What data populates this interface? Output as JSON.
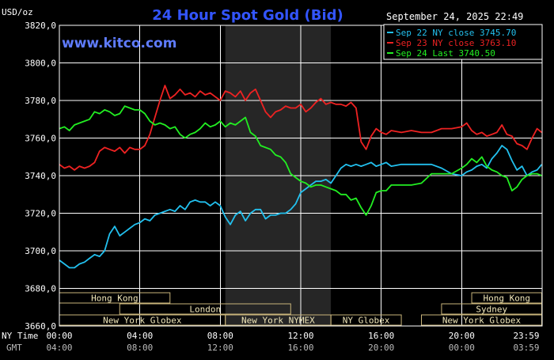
{
  "header": {
    "unit_label": "USD/oz",
    "title": "24 Hour Spot Gold (Bid)",
    "datetime": "September 24, 2025 22:49",
    "watermark": "www.kitco.com"
  },
  "colors": {
    "background": "#000000",
    "grid": "#ffffff",
    "title": "#3355ff",
    "watermark": "#5f7cff",
    "shaded_region": "#262626",
    "session_box_fill": "#fff8d8",
    "session_box_stroke": "#c8b47a",
    "session_text": "#000000"
  },
  "legend": {
    "position": "top-right",
    "items": [
      {
        "label": "Sep 22 NY close 3745.70",
        "color": "#22c0ee"
      },
      {
        "label": "Sep 23 NY close 3763.10",
        "color": "#ee2222"
      },
      {
        "label": "Sep 24 Last 3740.50",
        "color": "#22ee22"
      }
    ]
  },
  "time_axis": {
    "ny_label": "NY Time",
    "gmt_label": "GMT",
    "ny_ticks": [
      "00:00",
      "04:00",
      "08:00",
      "12:00",
      "16:00",
      "20:00",
      "23:59"
    ],
    "gmt_ticks": [
      "04:00",
      "08:00",
      "12:00",
      "16:00",
      "20:00",
      "00:00",
      "03:59"
    ]
  },
  "sessions": [
    {
      "label": "Hong Kong",
      "start": 0.0,
      "end": 5.5,
      "row": 0
    },
    {
      "label": "Hong Kong",
      "start": 20.5,
      "end": 23.98,
      "row": 0
    },
    {
      "label": "London",
      "start": 3.0,
      "end": 11.5,
      "row": 1
    },
    {
      "label": "Sydney",
      "start": 19.0,
      "end": 23.98,
      "row": 1
    },
    {
      "label": "New York Globex",
      "start": 0.0,
      "end": 8.25,
      "row": 2
    },
    {
      "label": "New York NYMEX",
      "start": 8.25,
      "end": 13.5,
      "row": 2
    },
    {
      "label": "NY Globex",
      "start": 13.5,
      "end": 17.0,
      "row": 2
    },
    {
      "label": "New York Globex",
      "start": 18.0,
      "end": 23.98,
      "row": 2
    }
  ],
  "chart_data": {
    "type": "line",
    "title": "24 Hour Spot Gold (Bid)",
    "ylabel": "USD/oz",
    "xlabel": "NY Time",
    "x_unit": "hours (NY time)",
    "xlim": [
      0,
      24
    ],
    "ylim": [
      3660,
      3820
    ],
    "yticks": [
      3660,
      3680,
      3700,
      3720,
      3740,
      3760,
      3780,
      3800,
      3820
    ],
    "grid": true,
    "shaded_x_range": [
      8.25,
      13.5
    ],
    "series": [
      {
        "name": "Sep 22 NY close 3745.70",
        "color": "#22c0ee",
        "points": [
          [
            0.0,
            3695
          ],
          [
            0.25,
            3693
          ],
          [
            0.5,
            3691
          ],
          [
            0.75,
            3691
          ],
          [
            1.0,
            3693
          ],
          [
            1.25,
            3694
          ],
          [
            1.5,
            3696
          ],
          [
            1.75,
            3698
          ],
          [
            2.0,
            3697
          ],
          [
            2.25,
            3700
          ],
          [
            2.5,
            3709
          ],
          [
            2.75,
            3713
          ],
          [
            3.0,
            3708
          ],
          [
            3.25,
            3710
          ],
          [
            3.5,
            3712
          ],
          [
            3.75,
            3714
          ],
          [
            4.0,
            3715
          ],
          [
            4.25,
            3717
          ],
          [
            4.5,
            3716
          ],
          [
            4.75,
            3719
          ],
          [
            5.0,
            3720
          ],
          [
            5.25,
            3721
          ],
          [
            5.5,
            3722
          ],
          [
            5.75,
            3721
          ],
          [
            6.0,
            3724
          ],
          [
            6.25,
            3722
          ],
          [
            6.5,
            3726
          ],
          [
            6.75,
            3727
          ],
          [
            7.0,
            3726
          ],
          [
            7.25,
            3726
          ],
          [
            7.5,
            3724
          ],
          [
            7.75,
            3726
          ],
          [
            8.0,
            3724
          ],
          [
            8.25,
            3718
          ],
          [
            8.5,
            3714
          ],
          [
            8.75,
            3719
          ],
          [
            9.0,
            3721
          ],
          [
            9.25,
            3716
          ],
          [
            9.5,
            3720
          ],
          [
            9.75,
            3722
          ],
          [
            10.0,
            3722
          ],
          [
            10.25,
            3717
          ],
          [
            10.5,
            3719
          ],
          [
            10.75,
            3719
          ],
          [
            11.0,
            3720
          ],
          [
            11.25,
            3720
          ],
          [
            11.5,
            3722
          ],
          [
            11.75,
            3725
          ],
          [
            12.0,
            3731
          ],
          [
            12.25,
            3733
          ],
          [
            12.5,
            3735
          ],
          [
            12.75,
            3737
          ],
          [
            13.0,
            3737
          ],
          [
            13.25,
            3738
          ],
          [
            13.5,
            3736
          ],
          [
            13.75,
            3740
          ],
          [
            14.0,
            3744
          ],
          [
            14.25,
            3746
          ],
          [
            14.5,
            3745
          ],
          [
            14.75,
            3746
          ],
          [
            15.0,
            3745
          ],
          [
            15.25,
            3746
          ],
          [
            15.5,
            3747
          ],
          [
            15.75,
            3745
          ],
          [
            16.0,
            3746
          ],
          [
            16.25,
            3747
          ],
          [
            16.5,
            3745
          ],
          [
            17.0,
            3746
          ],
          [
            17.5,
            3746
          ],
          [
            18.0,
            3746
          ],
          [
            18.5,
            3746
          ],
          [
            19.0,
            3744
          ],
          [
            19.5,
            3741
          ],
          [
            20.0,
            3740
          ],
          [
            20.25,
            3742
          ],
          [
            20.5,
            3743
          ],
          [
            20.75,
            3745
          ],
          [
            21.0,
            3746
          ],
          [
            21.25,
            3744
          ],
          [
            21.5,
            3749
          ],
          [
            21.75,
            3752
          ],
          [
            22.0,
            3756
          ],
          [
            22.25,
            3754
          ],
          [
            22.5,
            3748
          ],
          [
            22.75,
            3743
          ],
          [
            23.0,
            3745
          ],
          [
            23.25,
            3740
          ],
          [
            23.5,
            3742
          ],
          [
            23.75,
            3743
          ],
          [
            23.98,
            3746
          ]
        ]
      },
      {
        "name": "Sep 23 NY close 3763.10",
        "color": "#ee2222",
        "points": [
          [
            0.0,
            3746
          ],
          [
            0.25,
            3744
          ],
          [
            0.5,
            3745
          ],
          [
            0.75,
            3743
          ],
          [
            1.0,
            3745
          ],
          [
            1.25,
            3744
          ],
          [
            1.5,
            3745
          ],
          [
            1.75,
            3747
          ],
          [
            2.0,
            3753
          ],
          [
            2.25,
            3755
          ],
          [
            2.5,
            3754
          ],
          [
            2.75,
            3753
          ],
          [
            3.0,
            3755
          ],
          [
            3.25,
            3752
          ],
          [
            3.5,
            3755
          ],
          [
            3.75,
            3754
          ],
          [
            4.0,
            3754
          ],
          [
            4.25,
            3756
          ],
          [
            4.5,
            3762
          ],
          [
            4.75,
            3771
          ],
          [
            5.0,
            3780
          ],
          [
            5.25,
            3788
          ],
          [
            5.5,
            3781
          ],
          [
            5.75,
            3783
          ],
          [
            6.0,
            3786
          ],
          [
            6.25,
            3783
          ],
          [
            6.5,
            3784
          ],
          [
            6.75,
            3782
          ],
          [
            7.0,
            3785
          ],
          [
            7.25,
            3783
          ],
          [
            7.5,
            3784
          ],
          [
            7.75,
            3782
          ],
          [
            8.0,
            3780
          ],
          [
            8.25,
            3785
          ],
          [
            8.5,
            3784
          ],
          [
            8.75,
            3782
          ],
          [
            9.0,
            3785
          ],
          [
            9.25,
            3780
          ],
          [
            9.5,
            3784
          ],
          [
            9.75,
            3786
          ],
          [
            10.0,
            3780
          ],
          [
            10.25,
            3774
          ],
          [
            10.5,
            3771
          ],
          [
            10.75,
            3774
          ],
          [
            11.0,
            3775
          ],
          [
            11.25,
            3777
          ],
          [
            11.5,
            3776
          ],
          [
            11.75,
            3776
          ],
          [
            12.0,
            3778
          ],
          [
            12.25,
            3774
          ],
          [
            12.5,
            3776
          ],
          [
            12.75,
            3779
          ],
          [
            13.0,
            3781
          ],
          [
            13.25,
            3778
          ],
          [
            13.5,
            3779
          ],
          [
            13.75,
            3778
          ],
          [
            14.0,
            3778
          ],
          [
            14.25,
            3777
          ],
          [
            14.5,
            3779
          ],
          [
            14.75,
            3776
          ],
          [
            15.0,
            3758
          ],
          [
            15.25,
            3754
          ],
          [
            15.5,
            3761
          ],
          [
            15.75,
            3765
          ],
          [
            16.0,
            3763
          ],
          [
            16.25,
            3762
          ],
          [
            16.5,
            3764
          ],
          [
            17.0,
            3763
          ],
          [
            17.5,
            3764
          ],
          [
            18.0,
            3763
          ],
          [
            18.5,
            3763
          ],
          [
            19.0,
            3765
          ],
          [
            19.5,
            3765
          ],
          [
            20.0,
            3766
          ],
          [
            20.25,
            3768
          ],
          [
            20.5,
            3764
          ],
          [
            20.75,
            3762
          ],
          [
            21.0,
            3763
          ],
          [
            21.25,
            3761
          ],
          [
            21.5,
            3762
          ],
          [
            21.75,
            3763
          ],
          [
            22.0,
            3767
          ],
          [
            22.25,
            3762
          ],
          [
            22.5,
            3761
          ],
          [
            22.75,
            3757
          ],
          [
            23.0,
            3756
          ],
          [
            23.25,
            3754
          ],
          [
            23.5,
            3760
          ],
          [
            23.75,
            3765
          ],
          [
            23.98,
            3763
          ]
        ]
      },
      {
        "name": "Sep 24 Last 3740.50",
        "color": "#22ee22",
        "points": [
          [
            0.0,
            3765
          ],
          [
            0.25,
            3766
          ],
          [
            0.5,
            3764
          ],
          [
            0.75,
            3767
          ],
          [
            1.0,
            3768
          ],
          [
            1.25,
            3769
          ],
          [
            1.5,
            3770
          ],
          [
            1.75,
            3774
          ],
          [
            2.0,
            3773
          ],
          [
            2.25,
            3775
          ],
          [
            2.5,
            3774
          ],
          [
            2.75,
            3772
          ],
          [
            3.0,
            3773
          ],
          [
            3.25,
            3777
          ],
          [
            3.5,
            3776
          ],
          [
            3.75,
            3775
          ],
          [
            4.0,
            3775
          ],
          [
            4.25,
            3773
          ],
          [
            4.5,
            3769
          ],
          [
            4.75,
            3767
          ],
          [
            5.0,
            3768
          ],
          [
            5.25,
            3767
          ],
          [
            5.5,
            3765
          ],
          [
            5.75,
            3766
          ],
          [
            6.0,
            3762
          ],
          [
            6.25,
            3760
          ],
          [
            6.5,
            3762
          ],
          [
            6.75,
            3763
          ],
          [
            7.0,
            3765
          ],
          [
            7.25,
            3768
          ],
          [
            7.5,
            3766
          ],
          [
            7.75,
            3767
          ],
          [
            8.0,
            3769
          ],
          [
            8.25,
            3766
          ],
          [
            8.5,
            3768
          ],
          [
            8.75,
            3767
          ],
          [
            9.0,
            3769
          ],
          [
            9.25,
            3771
          ],
          [
            9.5,
            3763
          ],
          [
            9.75,
            3761
          ],
          [
            10.0,
            3756
          ],
          [
            10.25,
            3755
          ],
          [
            10.5,
            3754
          ],
          [
            10.75,
            3751
          ],
          [
            11.0,
            3750
          ],
          [
            11.25,
            3747
          ],
          [
            11.5,
            3741
          ],
          [
            11.75,
            3739
          ],
          [
            12.0,
            3737
          ],
          [
            12.25,
            3736
          ],
          [
            12.5,
            3734
          ],
          [
            12.75,
            3735
          ],
          [
            13.0,
            3735
          ],
          [
            13.25,
            3734
          ],
          [
            13.5,
            3733
          ],
          [
            13.75,
            3732
          ],
          [
            14.0,
            3730
          ],
          [
            14.25,
            3730
          ],
          [
            14.5,
            3727
          ],
          [
            14.75,
            3728
          ],
          [
            15.0,
            3723
          ],
          [
            15.25,
            3719
          ],
          [
            15.5,
            3724
          ],
          [
            15.75,
            3731
          ],
          [
            16.0,
            3732
          ],
          [
            16.25,
            3732
          ],
          [
            16.5,
            3735
          ],
          [
            17.0,
            3735
          ],
          [
            17.5,
            3735
          ],
          [
            18.0,
            3736
          ],
          [
            18.5,
            3741
          ],
          [
            19.0,
            3741
          ],
          [
            19.5,
            3741
          ],
          [
            20.0,
            3744
          ],
          [
            20.25,
            3746
          ],
          [
            20.5,
            3749
          ],
          [
            20.75,
            3747
          ],
          [
            21.0,
            3750
          ],
          [
            21.25,
            3745
          ],
          [
            21.5,
            3743
          ],
          [
            21.75,
            3742
          ],
          [
            22.0,
            3740
          ],
          [
            22.25,
            3739
          ],
          [
            22.5,
            3732
          ],
          [
            22.75,
            3734
          ],
          [
            23.0,
            3738
          ],
          [
            23.25,
            3740
          ],
          [
            23.5,
            3741
          ],
          [
            23.75,
            3741
          ],
          [
            23.98,
            3740
          ]
        ]
      }
    ]
  }
}
